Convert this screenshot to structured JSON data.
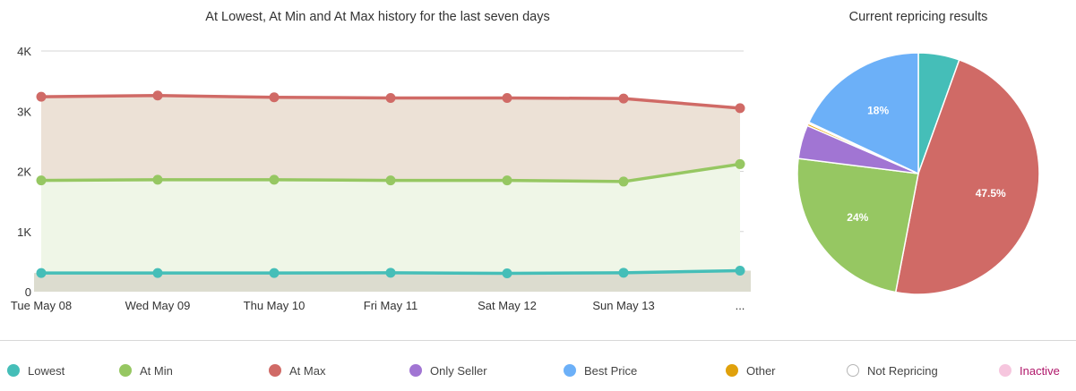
{
  "chart_data": [
    {
      "type": "area",
      "title": "At Lowest, At Min and At Max history for the last seven days",
      "categories": [
        "Tue May 08",
        "Wed May 09",
        "Thu May 10",
        "Fri May 11",
        "Sat May 12",
        "Sun May 13",
        "..."
      ],
      "y_tick_labels": [
        "0",
        "1K",
        "2K",
        "3K",
        "4K"
      ],
      "y_ticks": [
        0,
        1000,
        2000,
        3000,
        4000
      ],
      "ylim": [
        0,
        4000
      ],
      "grid": true,
      "series": [
        {
          "name": "At Max",
          "color": "#d06a66",
          "fill": "#ece1d6",
          "values": [
            3240,
            3260,
            3230,
            3220,
            3220,
            3210,
            3050
          ]
        },
        {
          "name": "At Min",
          "color": "#96c762",
          "fill": "#eff6e7",
          "values": [
            1850,
            1860,
            1860,
            1850,
            1850,
            1830,
            2120
          ]
        },
        {
          "name": "Lowest",
          "color": "#45beb8",
          "fill": "#dcdccf",
          "values": [
            310,
            310,
            310,
            315,
            305,
            315,
            350
          ]
        }
      ]
    },
    {
      "type": "pie",
      "title": "Current repricing results",
      "slices": [
        {
          "name": "Lowest",
          "value": 5.5,
          "color": "#45beb8",
          "label": ""
        },
        {
          "name": "At Max",
          "value": 47.5,
          "color": "#d06a66",
          "label": "47.5%"
        },
        {
          "name": "At Min",
          "value": 24,
          "color": "#96c762",
          "label": "24%"
        },
        {
          "name": "Only Seller",
          "value": 4.5,
          "color": "#a175d3",
          "label": ""
        },
        {
          "name": "Other",
          "value": 0.3,
          "color": "#e8a70c",
          "label": ""
        },
        {
          "name": "Not Repricing",
          "value": 0.2,
          "color": "#ffffff",
          "label": ""
        },
        {
          "name": "Best Price",
          "value": 18,
          "color": "#6cb0f8",
          "label": "18%"
        }
      ]
    }
  ],
  "legend": [
    {
      "name": "Lowest",
      "color": "#45beb8",
      "text_color": "#444444"
    },
    {
      "name": "At Min",
      "color": "#96c762",
      "text_color": "#444444"
    },
    {
      "name": "At Max",
      "color": "#d06a66",
      "text_color": "#444444"
    },
    {
      "name": "Only Seller",
      "color": "#a175d3",
      "text_color": "#444444"
    },
    {
      "name": "Best Price",
      "color": "#6cb0f8",
      "text_color": "#444444"
    },
    {
      "name": "Other",
      "color": "#e0a10c",
      "text_color": "#444444"
    },
    {
      "name": "Not Repricing",
      "color": "#ffffff",
      "text_color": "#444444"
    },
    {
      "name": "Inactive",
      "color": "#f6c6de",
      "text_color": "#b0176a"
    }
  ]
}
